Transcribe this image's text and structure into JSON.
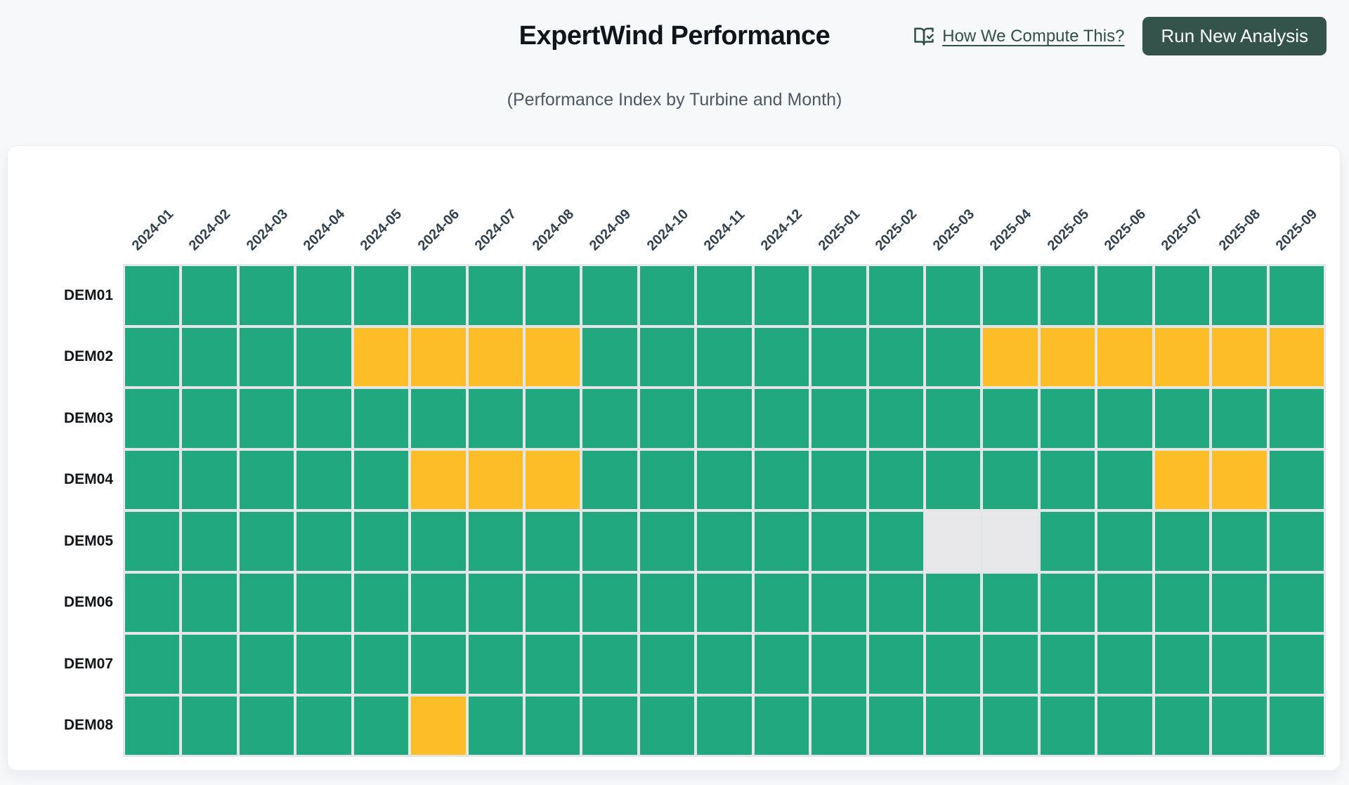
{
  "header": {
    "title": "ExpertWind Performance",
    "subtitle": "(Performance Index by Turbine and Month)",
    "help_link": "How We Compute This?",
    "run_button": "Run New Analysis"
  },
  "colors": {
    "good": "#21A87F",
    "warning": "#FDBD27",
    "no_data": "#E8E8EA",
    "grid_gap": "#E3E5E7",
    "button_bg": "#33534B",
    "link": "#2F4F47"
  },
  "chart_data": {
    "type": "heatmap",
    "title": "ExpertWind Performance",
    "subtitle": "(Performance Index by Turbine and Month)",
    "x_categories": [
      "2024-01",
      "2024-02",
      "2024-03",
      "2024-04",
      "2024-05",
      "2024-06",
      "2024-07",
      "2024-08",
      "2024-09",
      "2024-10",
      "2024-11",
      "2024-12",
      "2025-01",
      "2025-02",
      "2025-03",
      "2025-04",
      "2025-05",
      "2025-06",
      "2025-07",
      "2025-08",
      "2025-09"
    ],
    "y_categories": [
      "DEM01",
      "DEM02",
      "DEM03",
      "DEM04",
      "DEM05",
      "DEM06",
      "DEM07",
      "DEM08"
    ],
    "legend": {
      "G": "good performance (green)",
      "W": "reduced performance (amber)",
      "N": "no data (gray)"
    },
    "rows": [
      {
        "turbine": "DEM01",
        "cells": "GGGGGGGGGGGGGGGGGGGGG"
      },
      {
        "turbine": "DEM02",
        "cells": "GGGGWWWWGGGGGGGWWWWWW"
      },
      {
        "turbine": "DEM03",
        "cells": "GGGGGGGGGGGGGGGGGGGGG"
      },
      {
        "turbine": "DEM04",
        "cells": "GGGGGWWWGGGGGGGGGGWWG"
      },
      {
        "turbine": "DEM05",
        "cells": "GGGGGGGGGGGGGGNNGGGGG"
      },
      {
        "turbine": "DEM06",
        "cells": "GGGGGGGGGGGGGGGGGGGGG"
      },
      {
        "turbine": "DEM07",
        "cells": "GGGGGGGGGGGGGGGGGGGGG"
      },
      {
        "turbine": "DEM08",
        "cells": "GGGGGWGGGGGGGGGGGGGGG"
      }
    ],
    "layout": {
      "grid": "on",
      "legend_position": "none",
      "x_label_rotation": 45
    }
  }
}
